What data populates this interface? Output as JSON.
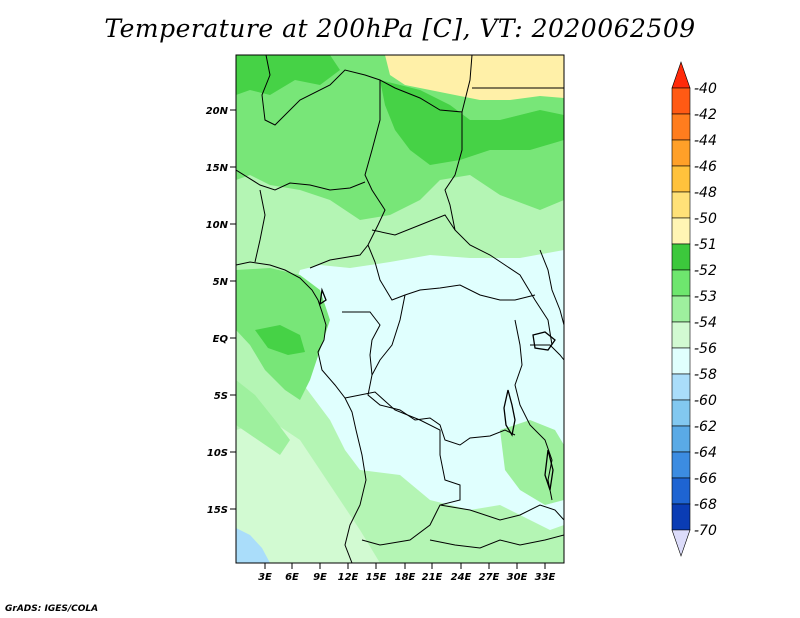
{
  "title": "Temperature at 200hPa [C], VT: 2020062509",
  "credit": "GrADS: IGES/COLA",
  "map": {
    "lat_labels": [
      "20N",
      "15N",
      "10N",
      "5N",
      "EQ",
      "5S",
      "10S",
      "15S"
    ],
    "lon_labels": [
      "3E",
      "6E",
      "9E",
      "12E",
      "15E",
      "18E",
      "21E",
      "24E",
      "27E",
      "30E",
      "33E"
    ]
  },
  "colorbar": {
    "levels": [
      "-40",
      "-42",
      "-44",
      "-46",
      "-48",
      "-50",
      "-51",
      "-52",
      "-53",
      "-54",
      "-56",
      "-58",
      "-60",
      "-62",
      "-64",
      "-66",
      "-68",
      "-70"
    ],
    "colors": [
      "#ff2a0a",
      "#ff5a14",
      "#ff7d1e",
      "#ffa028",
      "#ffc23c",
      "#ffe178",
      "#fff5b4",
      "#3cc83c",
      "#6ee66e",
      "#9ef09e",
      "#d2fad2",
      "#e0fffe",
      "#aaddfa",
      "#82c8f0",
      "#5aaae6",
      "#3c8ce1",
      "#1e64d2",
      "#0a3cb4",
      "#001e8c",
      "#000a5a",
      "#dcdcfa"
    ]
  },
  "colors": {
    "ocean_ne": "#e0fffe",
    "land_light": "#b4f5b4",
    "land_mid": "#78e678",
    "land_dark": "#46d246",
    "sahara_warm": "#fff0a8"
  }
}
